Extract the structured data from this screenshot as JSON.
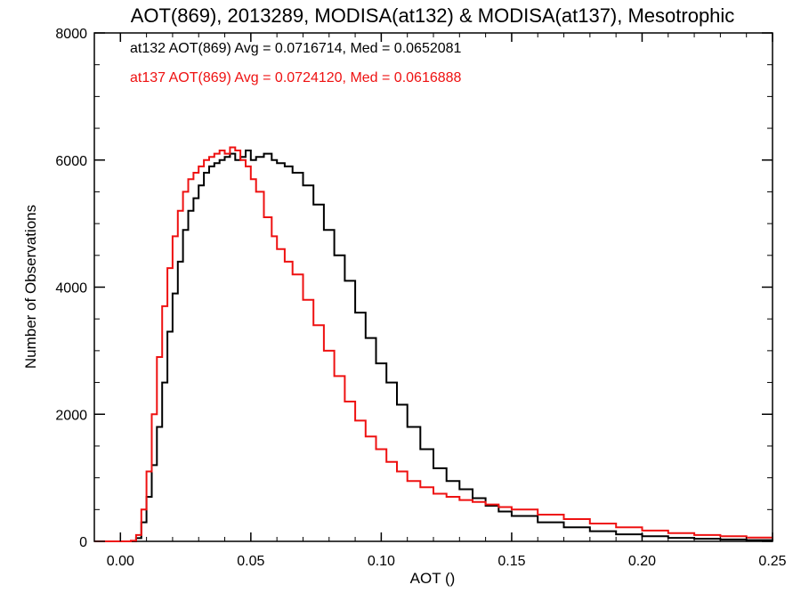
{
  "chart_data": {
    "type": "line",
    "step": true,
    "title": "AOT(869), 2013289, MODISA(at132) & MODISA(at137), Mesotrophic",
    "xlabel": "AOT ()",
    "ylabel": "Number of Observations",
    "xlim": [
      -0.01,
      0.25
    ],
    "ylim": [
      0,
      8000
    ],
    "xticks": [
      0.0,
      0.05,
      0.1,
      0.15,
      0.2,
      0.25
    ],
    "xtick_labels": [
      "0.00",
      "0.05",
      "0.10",
      "0.15",
      "0.20",
      "0.25"
    ],
    "yticks": [
      0,
      2000,
      4000,
      6000,
      8000
    ],
    "ytick_labels": [
      "0",
      "2000",
      "4000",
      "6000",
      "8000"
    ],
    "grid": false,
    "legend_position": "top-left",
    "series": [
      {
        "name": "at132",
        "color": "#000000",
        "legend_text": "at132 AOT(869) Avg = 0.0716714, Med = 0.0652081",
        "x": [
          0.0,
          0.004,
          0.006,
          0.008,
          0.01,
          0.012,
          0.014,
          0.016,
          0.018,
          0.02,
          0.022,
          0.024,
          0.026,
          0.028,
          0.03,
          0.032,
          0.034,
          0.036,
          0.038,
          0.04,
          0.042,
          0.044,
          0.046,
          0.048,
          0.05,
          0.052,
          0.055,
          0.058,
          0.06,
          0.063,
          0.066,
          0.07,
          0.074,
          0.078,
          0.082,
          0.086,
          0.09,
          0.094,
          0.098,
          0.102,
          0.106,
          0.11,
          0.115,
          0.12,
          0.125,
          0.13,
          0.135,
          0.14,
          0.145,
          0.15,
          0.16,
          0.17,
          0.18,
          0.19,
          0.2,
          0.21,
          0.22,
          0.23,
          0.24,
          0.25
        ],
        "y": [
          0,
          0,
          50,
          300,
          700,
          1200,
          1800,
          2500,
          3300,
          3900,
          4400,
          4900,
          5200,
          5400,
          5600,
          5800,
          5900,
          5950,
          6000,
          6050,
          6100,
          6000,
          6050,
          6150,
          6000,
          6050,
          6100,
          6000,
          5950,
          5900,
          5800,
          5600,
          5300,
          4900,
          4500,
          4100,
          3600,
          3200,
          2800,
          2500,
          2150,
          1800,
          1450,
          1150,
          950,
          820,
          680,
          560,
          470,
          400,
          300,
          220,
          160,
          110,
          80,
          55,
          40,
          30,
          20,
          15
        ]
      },
      {
        "name": "at137",
        "color": "#ee1111",
        "legend_text": "at137 AOT(869) Avg = 0.0724120, Med = 0.0616888",
        "x": [
          0.0,
          0.004,
          0.006,
          0.008,
          0.01,
          0.012,
          0.014,
          0.016,
          0.018,
          0.02,
          0.022,
          0.024,
          0.026,
          0.028,
          0.03,
          0.032,
          0.034,
          0.036,
          0.038,
          0.04,
          0.042,
          0.044,
          0.046,
          0.048,
          0.05,
          0.052,
          0.055,
          0.058,
          0.06,
          0.063,
          0.066,
          0.07,
          0.074,
          0.078,
          0.082,
          0.086,
          0.09,
          0.094,
          0.098,
          0.102,
          0.106,
          0.11,
          0.115,
          0.12,
          0.125,
          0.13,
          0.135,
          0.14,
          0.145,
          0.15,
          0.16,
          0.17,
          0.18,
          0.19,
          0.2,
          0.21,
          0.22,
          0.23,
          0.24,
          0.25
        ],
        "y": [
          0,
          10,
          100,
          500,
          1100,
          2000,
          2900,
          3700,
          4300,
          4800,
          5200,
          5500,
          5700,
          5800,
          5900,
          6000,
          6050,
          6100,
          6150,
          6100,
          6200,
          6150,
          6000,
          5900,
          5700,
          5500,
          5100,
          4800,
          4600,
          4400,
          4200,
          3800,
          3400,
          3000,
          2600,
          2200,
          1900,
          1650,
          1450,
          1250,
          1100,
          950,
          850,
          750,
          700,
          650,
          620,
          580,
          540,
          500,
          420,
          350,
          280,
          220,
          170,
          130,
          100,
          80,
          60,
          45
        ]
      }
    ]
  }
}
